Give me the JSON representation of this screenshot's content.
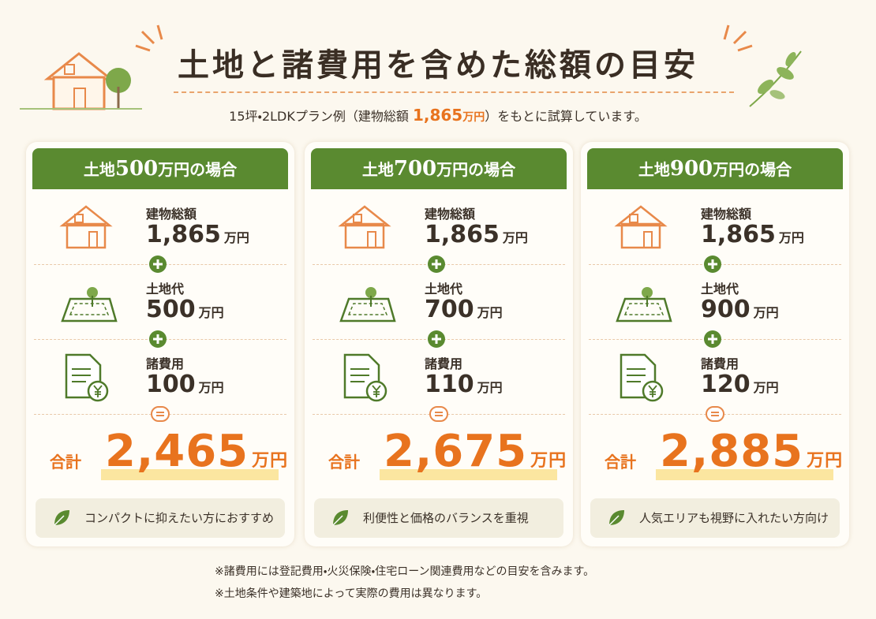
{
  "header": {
    "title": "土地と諸費用を含めた総額の目安",
    "subtitle": {
      "before": "15坪・2LDKプラン例（建物総額 ",
      "amount": "1,865",
      "unit": "万円",
      "after": "）をもとに試算しています。"
    }
  },
  "cards": [
    {
      "heading": {
        "prefix": "土地",
        "amount": "500",
        "unit": "万円",
        "suffix": "の場合"
      },
      "items": [
        {
          "label": "建物総額",
          "amount": "1,865",
          "unit": "万円"
        },
        {
          "label": "土地代",
          "amount": "500",
          "unit": "万円"
        },
        {
          "label": "諸費用",
          "amount": "100",
          "unit": "万円"
        }
      ],
      "total": {
        "label": "合計",
        "amount": "2,465",
        "unit": "万円"
      },
      "note": "コンパクトに抑えたい方におすすめ"
    },
    {
      "heading": {
        "prefix": "土地",
        "amount": "700",
        "unit": "万円",
        "suffix": "の場合"
      },
      "items": [
        {
          "label": "建物総額",
          "amount": "1,865",
          "unit": "万円"
        },
        {
          "label": "土地代",
          "amount": "700",
          "unit": "万円"
        },
        {
          "label": "諸費用",
          "amount": "110",
          "unit": "万円"
        }
      ],
      "total": {
        "label": "合計",
        "amount": "2,675",
        "unit": "万円"
      },
      "note": "利便性と価格のバランスを重視"
    },
    {
      "heading": {
        "prefix": "土地",
        "amount": "900",
        "unit": "万円",
        "suffix": "の場合"
      },
      "items": [
        {
          "label": "建物総額",
          "amount": "1,865",
          "unit": "万円"
        },
        {
          "label": "土地代",
          "amount": "900",
          "unit": "万円"
        },
        {
          "label": "諸費用",
          "amount": "120",
          "unit": "万円"
        }
      ],
      "total": {
        "label": "合計",
        "amount": "2,885",
        "unit": "万円"
      },
      "note": "人気エリアも視野に入れたい方向け"
    }
  ],
  "footnotes": [
    "※諸費用には登記費用・火災保険・住宅ローン関連費用などの目安を含みます。",
    "※土地条件や建築地によって実際の費用は異なります。"
  ]
}
